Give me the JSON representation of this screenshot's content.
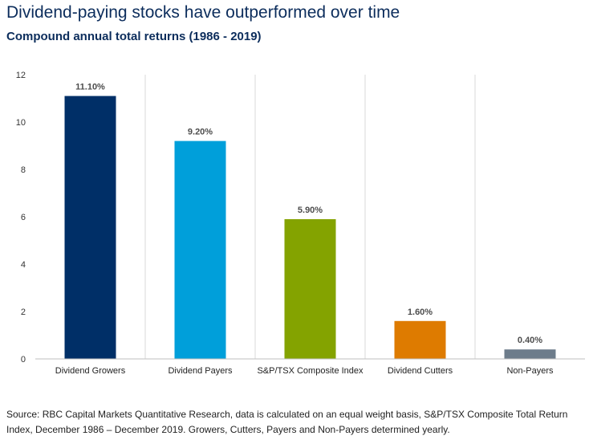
{
  "header": {
    "title": "Dividend-paying stocks have outperformed over time",
    "subtitle": "Compound annual total returns (1986 - 2019)"
  },
  "chart_data": {
    "type": "bar",
    "categories": [
      "Dividend Growers",
      "Dividend Payers",
      "S&P/TSX Composite Index",
      "Dividend Cutters",
      "Non-Payers"
    ],
    "values": [
      11.1,
      9.2,
      5.9,
      1.6,
      0.4
    ],
    "data_labels": [
      "11.10%",
      "9.20%",
      "5.90%",
      "1.60%",
      "0.40%"
    ],
    "colors": [
      "#002f67",
      "#009fda",
      "#84a300",
      "#de7b00",
      "#6d7c8b"
    ],
    "ylim": [
      0,
      12
    ],
    "yticks": [
      0,
      2,
      4,
      6,
      8,
      10,
      12
    ],
    "grid": "vertical separators",
    "legend": "none"
  },
  "footer": {
    "source": "Source: RBC Capital Markets Quantitative Research, data is calculated on an equal weight basis, S&P/TSX Composite Total Return Index, December 1986 – December 2019. Growers, Cutters, Payers and Non-Payers determined yearly."
  }
}
